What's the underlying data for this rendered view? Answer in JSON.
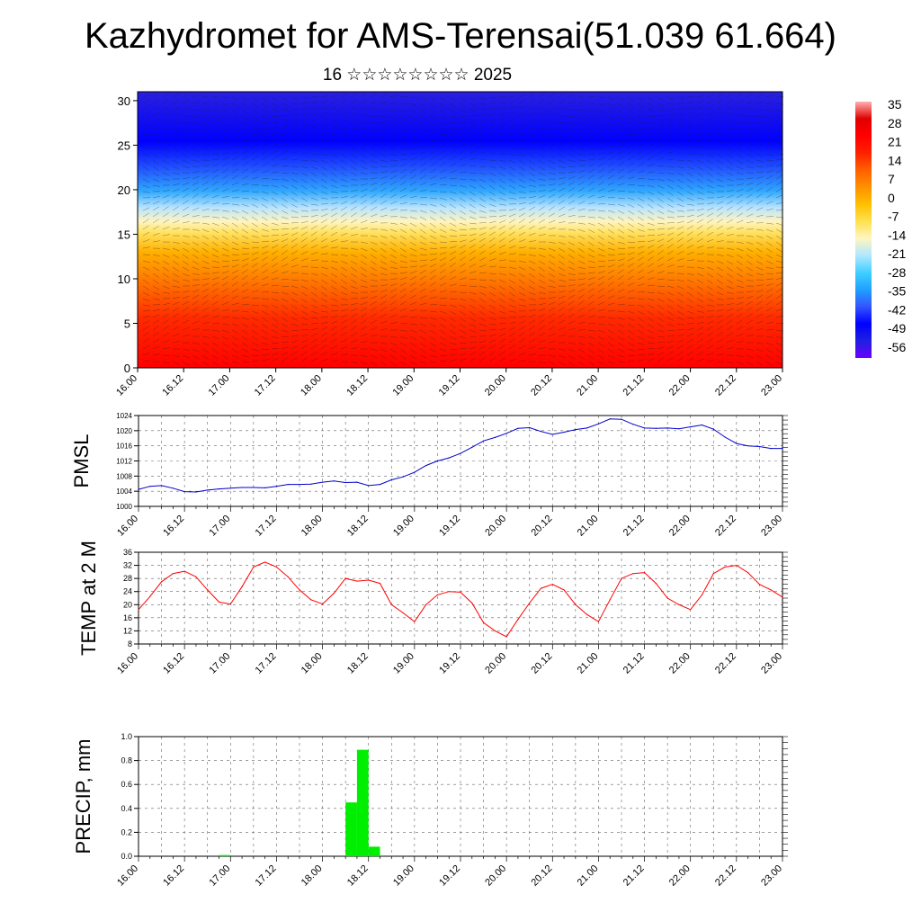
{
  "header": {
    "title": "Kazhydromet for AMS-Terensai(51.039 61.664)",
    "subtitle": "16 ☆☆☆☆☆☆☆☆ 2025"
  },
  "colors": {
    "pmsl_line": "#0000cc",
    "temp_line": "#ff0000",
    "precip_bar": "#00ee00",
    "colorbar": [
      "#6a00ff",
      "#2020e0",
      "#0000ff",
      "#3355ff",
      "#20a0ff",
      "#40d0ff",
      "#b0e8ff",
      "#fff6c0",
      "#ffe050",
      "#ffc000",
      "#ff9000",
      "#ff6000",
      "#ff2000",
      "#ff0000",
      "#e00000",
      "#ffb0b0"
    ]
  },
  "chart_data": [
    {
      "type": "heatmap",
      "title": "",
      "xlabel": "",
      "ylabel": "",
      "x_ticks": [
        "16.00",
        "16.12",
        "17.00",
        "17.12",
        "18.00",
        "18.12",
        "19.00",
        "19.12",
        "20.00",
        "20.12",
        "21.00",
        "21.12",
        "22.00",
        "22.12",
        "23.00"
      ],
      "y_ticks": [
        "0",
        "5",
        "10",
        "15",
        "20",
        "25",
        "30"
      ],
      "ylim": [
        0,
        31
      ],
      "colorbar_labels": [
        "35",
        "28",
        "21",
        "14",
        "7",
        "0",
        "-7",
        "-14",
        "-21",
        "-28",
        "-35",
        "-42",
        "-49",
        "-56"
      ],
      "overlay": "wind barbs"
    },
    {
      "type": "line",
      "ylabel": "PMSL",
      "x_ticks": [
        "16.00",
        "16.12",
        "17.00",
        "17.12",
        "18.00",
        "18.12",
        "19.00",
        "19.12",
        "20.00",
        "20.12",
        "21.00",
        "21.12",
        "22.00",
        "22.12",
        "23.00"
      ],
      "y_ticks": [
        "1000",
        "1004",
        "1008",
        "1012",
        "1016",
        "1020",
        "1024"
      ],
      "ylim": [
        1000,
        1024
      ],
      "xlim": [
        0,
        168
      ],
      "x": [
        0,
        3,
        6,
        9,
        12,
        15,
        18,
        21,
        24,
        27,
        30,
        33,
        36,
        39,
        42,
        45,
        48,
        51,
        54,
        57,
        60,
        63,
        66,
        69,
        72,
        75,
        78,
        81,
        84,
        87,
        90,
        93,
        96,
        99,
        102,
        105,
        108,
        111,
        114,
        117,
        120,
        123,
        126,
        129,
        132,
        135,
        138,
        141,
        144,
        147,
        150,
        153,
        156,
        159,
        162,
        165,
        168
      ],
      "values": [
        1004.5,
        1005.3,
        1005.5,
        1004.8,
        1003.9,
        1003.8,
        1004.3,
        1004.6,
        1004.8,
        1005.0,
        1005.0,
        1004.9,
        1005.3,
        1005.8,
        1005.8,
        1005.9,
        1006.4,
        1006.7,
        1006.3,
        1006.4,
        1005.5,
        1005.8,
        1007.0,
        1007.8,
        1009.0,
        1010.8,
        1012.0,
        1012.8,
        1014.0,
        1015.6,
        1017.3,
        1018.2,
        1019.3,
        1020.6,
        1020.8,
        1019.8,
        1019.0,
        1019.6,
        1020.3,
        1020.7,
        1021.8,
        1023.1,
        1023.0,
        1021.7,
        1020.7,
        1020.6,
        1020.7,
        1020.5,
        1021.0,
        1021.5,
        1020.4,
        1018.3,
        1016.6,
        1016.0,
        1015.8,
        1015.3,
        1015.3
      ]
    },
    {
      "type": "line",
      "ylabel": "TEMP at 2 M",
      "x_ticks": [
        "16.00",
        "16.12",
        "17.00",
        "17.12",
        "18.00",
        "18.12",
        "19.00",
        "19.12",
        "20.00",
        "20.12",
        "21.00",
        "21.12",
        "22.00",
        "22.12",
        "23.00"
      ],
      "y_ticks": [
        "8",
        "12",
        "16",
        "20",
        "24",
        "28",
        "32",
        "36"
      ],
      "ylim": [
        8,
        36
      ],
      "xlim": [
        0,
        168
      ],
      "x": [
        0,
        3,
        6,
        9,
        12,
        15,
        18,
        21,
        24,
        27,
        30,
        33,
        36,
        39,
        42,
        45,
        48,
        51,
        54,
        57,
        60,
        63,
        66,
        69,
        72,
        75,
        78,
        81,
        84,
        87,
        90,
        93,
        96,
        99,
        102,
        105,
        108,
        111,
        114,
        117,
        120,
        123,
        126,
        129,
        132,
        135,
        138,
        141,
        144,
        147,
        150,
        153,
        156,
        159,
        162,
        165,
        168
      ],
      "values": [
        18.5,
        22.5,
        27.0,
        29.5,
        30.2,
        28.5,
        24.5,
        20.8,
        20.2,
        25.5,
        31.5,
        33.0,
        31.5,
        28.5,
        24.5,
        21.5,
        20.2,
        23.5,
        28.0,
        27.2,
        27.5,
        26.5,
        20.0,
        17.5,
        14.8,
        20.0,
        23.0,
        24.0,
        23.8,
        20.5,
        14.5,
        12.0,
        10.2,
        15.5,
        20.5,
        25.0,
        26.2,
        24.5,
        20.0,
        17.0,
        14.8,
        21.5,
        28.0,
        29.5,
        29.8,
        26.5,
        22.0,
        20.0,
        18.5,
        23.0,
        29.5,
        31.5,
        32.0,
        29.8,
        26.2,
        24.5,
        22.3
      ]
    },
    {
      "type": "bar",
      "ylabel": "PRECIP, mm",
      "x_ticks": [
        "16.00",
        "16.12",
        "17.00",
        "17.12",
        "18.00",
        "18.12",
        "19.00",
        "19.12",
        "20.00",
        "20.12",
        "21.00",
        "21.12",
        "22.00",
        "22.12",
        "23.00"
      ],
      "y_ticks": [
        "0.0",
        "0.2",
        "0.4",
        "0.6",
        "0.8",
        "1.0"
      ],
      "ylim": [
        0,
        1.0
      ],
      "xlim": [
        0,
        168
      ],
      "bars": [
        {
          "x": 21.0,
          "width": 3,
          "value": 0.01
        },
        {
          "x": 54.0,
          "width": 3,
          "value": 0.45
        },
        {
          "x": 57.0,
          "width": 3,
          "value": 0.89
        },
        {
          "x": 60.0,
          "width": 3,
          "value": 0.08
        }
      ]
    }
  ]
}
